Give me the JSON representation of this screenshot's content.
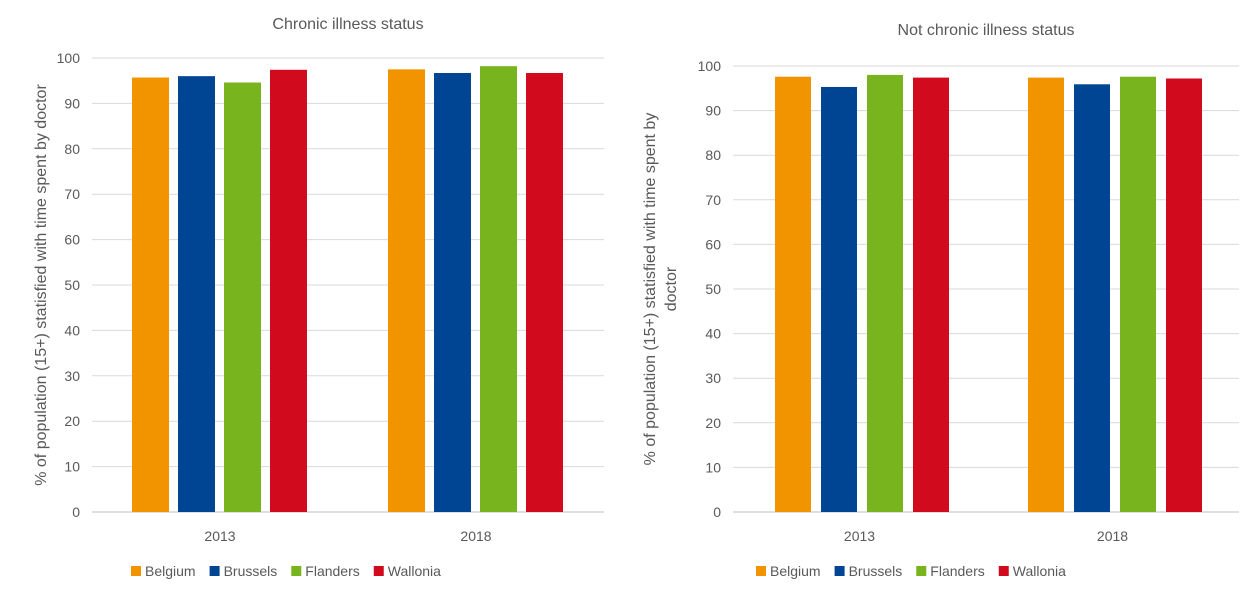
{
  "chart_data": [
    {
      "type": "bar",
      "title": "Chronic illness status",
      "ylabel": "% of population (15+) statisfied with time spent by doctor",
      "xlabel": "",
      "categories": [
        "2013",
        "2018"
      ],
      "ylim": [
        0,
        100
      ],
      "yticks": [
        0,
        10,
        20,
        30,
        40,
        50,
        60,
        70,
        80,
        90,
        100
      ],
      "grid": true,
      "legend_position": "bottom",
      "series": [
        {
          "name": "Belgium",
          "color": "#F29400",
          "values": [
            95.7,
            97.5
          ]
        },
        {
          "name": "Brussels",
          "color": "#004494",
          "values": [
            96.0,
            96.7
          ]
        },
        {
          "name": "Flanders",
          "color": "#78B41E",
          "values": [
            94.6,
            98.2
          ]
        },
        {
          "name": "Wallonia",
          "color": "#D20A1E",
          "values": [
            97.4,
            96.7
          ]
        }
      ]
    },
    {
      "type": "bar",
      "title": "Not chronic illness status",
      "ylabel": "% of population (15+) statisfied with time spent by doctor",
      "xlabel": "",
      "categories": [
        "2013",
        "2018"
      ],
      "ylim": [
        0,
        100
      ],
      "yticks": [
        0,
        10,
        20,
        30,
        40,
        50,
        60,
        70,
        80,
        90,
        100
      ],
      "grid": true,
      "legend_position": "bottom",
      "series": [
        {
          "name": "Belgium",
          "color": "#F29400",
          "values": [
            97.6,
            97.4
          ]
        },
        {
          "name": "Brussels",
          "color": "#004494",
          "values": [
            95.3,
            95.9
          ]
        },
        {
          "name": "Flanders",
          "color": "#78B41E",
          "values": [
            98.0,
            97.6
          ]
        },
        {
          "name": "Wallonia",
          "color": "#D20A1E",
          "values": [
            97.4,
            97.2
          ]
        }
      ]
    }
  ]
}
